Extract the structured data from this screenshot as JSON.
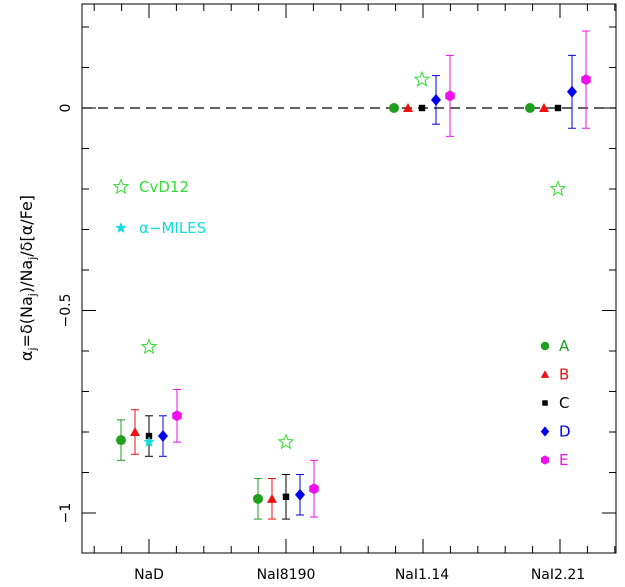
{
  "chart_data": {
    "type": "scatter",
    "title": "",
    "xlabel": "",
    "ylabel": "α_j=δ(Na_j)/Na_j/δ[α/Fe]",
    "ylabel_parts": {
      "main": "α",
      "sub1": "j",
      "mid1": "=δ(Na",
      "sub2": "j",
      "mid2": ")/Na",
      "sub3": "j",
      "end": "/δ[α/Fe]"
    },
    "ylim": [
      -1.1,
      0.25
    ],
    "yticks": [
      0,
      -0.5,
      -1
    ],
    "ytick_labels": [
      "0",
      "−0.5",
      "−1"
    ],
    "categories": [
      "NaD",
      "NaI8190",
      "NaI1.14",
      "NaI2.21"
    ],
    "reference_line": {
      "y": 0,
      "style": "dashed"
    },
    "series": [
      {
        "name": "A",
        "color": "#1f9e1f",
        "marker": "circle",
        "values": [
          -0.82,
          -0.965,
          0.0,
          0.0
        ],
        "err": [
          0.05,
          0.05,
          0,
          0
        ]
      },
      {
        "name": "B",
        "color": "#ee1111",
        "marker": "triangle",
        "values": [
          -0.8,
          -0.965,
          0.0,
          0.0
        ],
        "err": [
          0.055,
          0.05,
          0,
          0
        ]
      },
      {
        "name": "C",
        "color": "#000000",
        "marker": "square",
        "values": [
          -0.81,
          -0.96,
          0.0,
          0.0
        ],
        "err": [
          0.05,
          0.055,
          0,
          0
        ]
      },
      {
        "name": "D",
        "color": "#0000ee",
        "marker": "diamond",
        "values": [
          -0.81,
          -0.955,
          0.02,
          0.04
        ],
        "err": [
          0.05,
          0.05,
          0.06,
          0.09
        ]
      },
      {
        "name": "E",
        "color": "#ee11ee",
        "marker": "hexagon",
        "values": [
          -0.76,
          -0.94,
          0.03,
          0.07
        ],
        "err": [
          0.065,
          0.07,
          0.1,
          0.12
        ]
      }
    ],
    "models": [
      {
        "name": "CvD12",
        "color": "#33dd33",
        "marker": "star-open",
        "values": [
          -0.59,
          -0.825,
          0.07,
          -0.2
        ]
      },
      {
        "name": "α−MILES",
        "color": "#11dddd",
        "marker": "star-filled",
        "values": [
          -0.825,
          null,
          null,
          null
        ]
      }
    ],
    "legend_models": {
      "items": [
        "CvD12",
        "α−MILES"
      ],
      "placement": "upper-left"
    },
    "legend_series": {
      "items": [
        "A",
        "B",
        "C",
        "D",
        "E"
      ],
      "placement": "lower-right"
    }
  }
}
